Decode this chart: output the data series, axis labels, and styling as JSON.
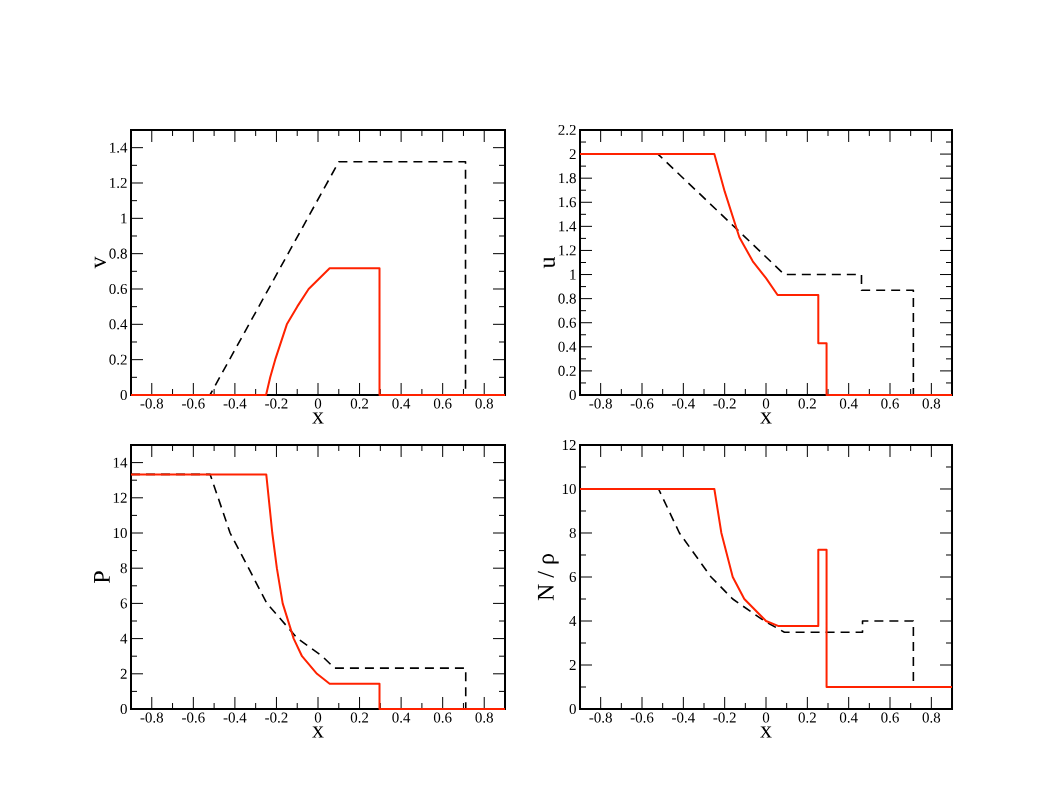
{
  "chart_data": [
    {
      "type": "line",
      "xlabel": "x",
      "ylabel": "v",
      "xlim": [
        -0.9,
        0.9
      ],
      "ylim": [
        0,
        1.5
      ],
      "xticks": [
        -0.8,
        -0.6,
        -0.4,
        -0.2,
        0,
        0.2,
        0.4,
        0.6,
        0.8
      ],
      "yticks": [
        0,
        0.2,
        0.4,
        0.6,
        0.8,
        1,
        1.2,
        1.4
      ],
      "series": [
        {
          "color": "#000000",
          "line_style": "dashed",
          "x": [
            -0.9,
            -0.52,
            0.1,
            0.71,
            0.71,
            0.9
          ],
          "values": [
            0,
            0,
            1.32,
            1.32,
            0,
            0
          ]
        },
        {
          "color": "#ff2200",
          "line_style": "solid",
          "x": [
            -0.9,
            -0.25,
            -0.23,
            -0.206,
            -0.15,
            -0.1,
            -0.045,
            0.056,
            0.296,
            0.296,
            0.9
          ],
          "values": [
            0,
            0,
            0.1,
            0.2,
            0.4,
            0.5,
            0.6,
            0.717,
            0.717,
            0,
            0
          ]
        }
      ]
    },
    {
      "type": "line",
      "xlabel": "x",
      "ylabel": "u",
      "xlim": [
        -0.9,
        0.9
      ],
      "ylim": [
        0,
        2.2
      ],
      "xticks": [
        -0.8,
        -0.6,
        -0.4,
        -0.2,
        0,
        0.2,
        0.4,
        0.6,
        0.8
      ],
      "yticks": [
        0,
        0.2,
        0.4,
        0.6,
        0.8,
        1,
        1.2,
        1.4,
        1.6,
        1.8,
        2,
        2.2
      ],
      "series": [
        {
          "color": "#000000",
          "line_style": "dashed",
          "x": [
            -0.9,
            -0.523,
            0.089,
            0.462,
            0.462,
            0.713,
            0.713,
            0.9
          ],
          "values": [
            2,
            2,
            1.0,
            1.0,
            0.87,
            0.87,
            0,
            0
          ]
        },
        {
          "color": "#ff2200",
          "line_style": "solid",
          "x": [
            -0.9,
            -0.25,
            -0.2,
            -0.129,
            -0.064,
            0,
            0.056,
            0.253,
            0.253,
            0.293,
            0.293,
            0.9
          ],
          "values": [
            2,
            2,
            1.69,
            1.31,
            1.11,
            0.97,
            0.83,
            0.83,
            0.43,
            0.43,
            0,
            0
          ]
        }
      ]
    },
    {
      "type": "line",
      "xlabel": "x",
      "ylabel": "P",
      "xlim": [
        -0.9,
        0.9
      ],
      "ylim": [
        0,
        15
      ],
      "xticks": [
        -0.8,
        -0.6,
        -0.4,
        -0.2,
        0,
        0.2,
        0.4,
        0.6,
        0.8
      ],
      "yticks": [
        0,
        2,
        4,
        6,
        8,
        10,
        12,
        14
      ],
      "series": [
        {
          "color": "#000000",
          "line_style": "dashed",
          "x": [
            -0.9,
            -0.519,
            -0.423,
            -0.334,
            -0.246,
            -0.098,
            0.02,
            0.08,
            0.711,
            0.711,
            0.9
          ],
          "values": [
            13.33,
            13.33,
            10,
            8,
            6,
            4,
            3,
            2.32,
            2.32,
            0,
            0
          ]
        },
        {
          "color": "#ff2200",
          "line_style": "solid",
          "x": [
            -0.9,
            -0.249,
            -0.22,
            -0.198,
            -0.17,
            -0.117,
            -0.077,
            -0.005,
            0.056,
            0.296,
            0.296,
            0.9
          ],
          "values": [
            13.33,
            13.33,
            10,
            8,
            6,
            4,
            3,
            2,
            1.43,
            1.43,
            0,
            0
          ]
        }
      ]
    },
    {
      "type": "line",
      "xlabel": "x",
      "ylabel": "N / ρ",
      "xlim": [
        -0.9,
        0.9
      ],
      "ylim": [
        0,
        12
      ],
      "xticks": [
        -0.8,
        -0.6,
        -0.4,
        -0.2,
        0,
        0.2,
        0.4,
        0.6,
        0.8
      ],
      "yticks": [
        0,
        2,
        4,
        6,
        8,
        10,
        12
      ],
      "series": [
        {
          "color": "#000000",
          "line_style": "dashed",
          "x": [
            -0.9,
            -0.52,
            -0.419,
            -0.266,
            -0.161,
            -0.008,
            0.089,
            0.467,
            0.467,
            0.713,
            0.713,
            0.9
          ],
          "values": [
            10,
            10,
            8,
            6,
            5,
            4,
            3.49,
            3.49,
            4,
            4,
            1,
            1
          ]
        },
        {
          "color": "#ff2200",
          "line_style": "solid",
          "x": [
            -0.9,
            -0.25,
            -0.216,
            -0.161,
            -0.105,
            0,
            0.061,
            0.253,
            0.253,
            0.293,
            0.293,
            0.9
          ],
          "values": [
            10,
            10,
            8,
            6,
            5,
            4,
            3.77,
            3.77,
            7.24,
            7.24,
            1,
            1
          ]
        }
      ]
    }
  ]
}
